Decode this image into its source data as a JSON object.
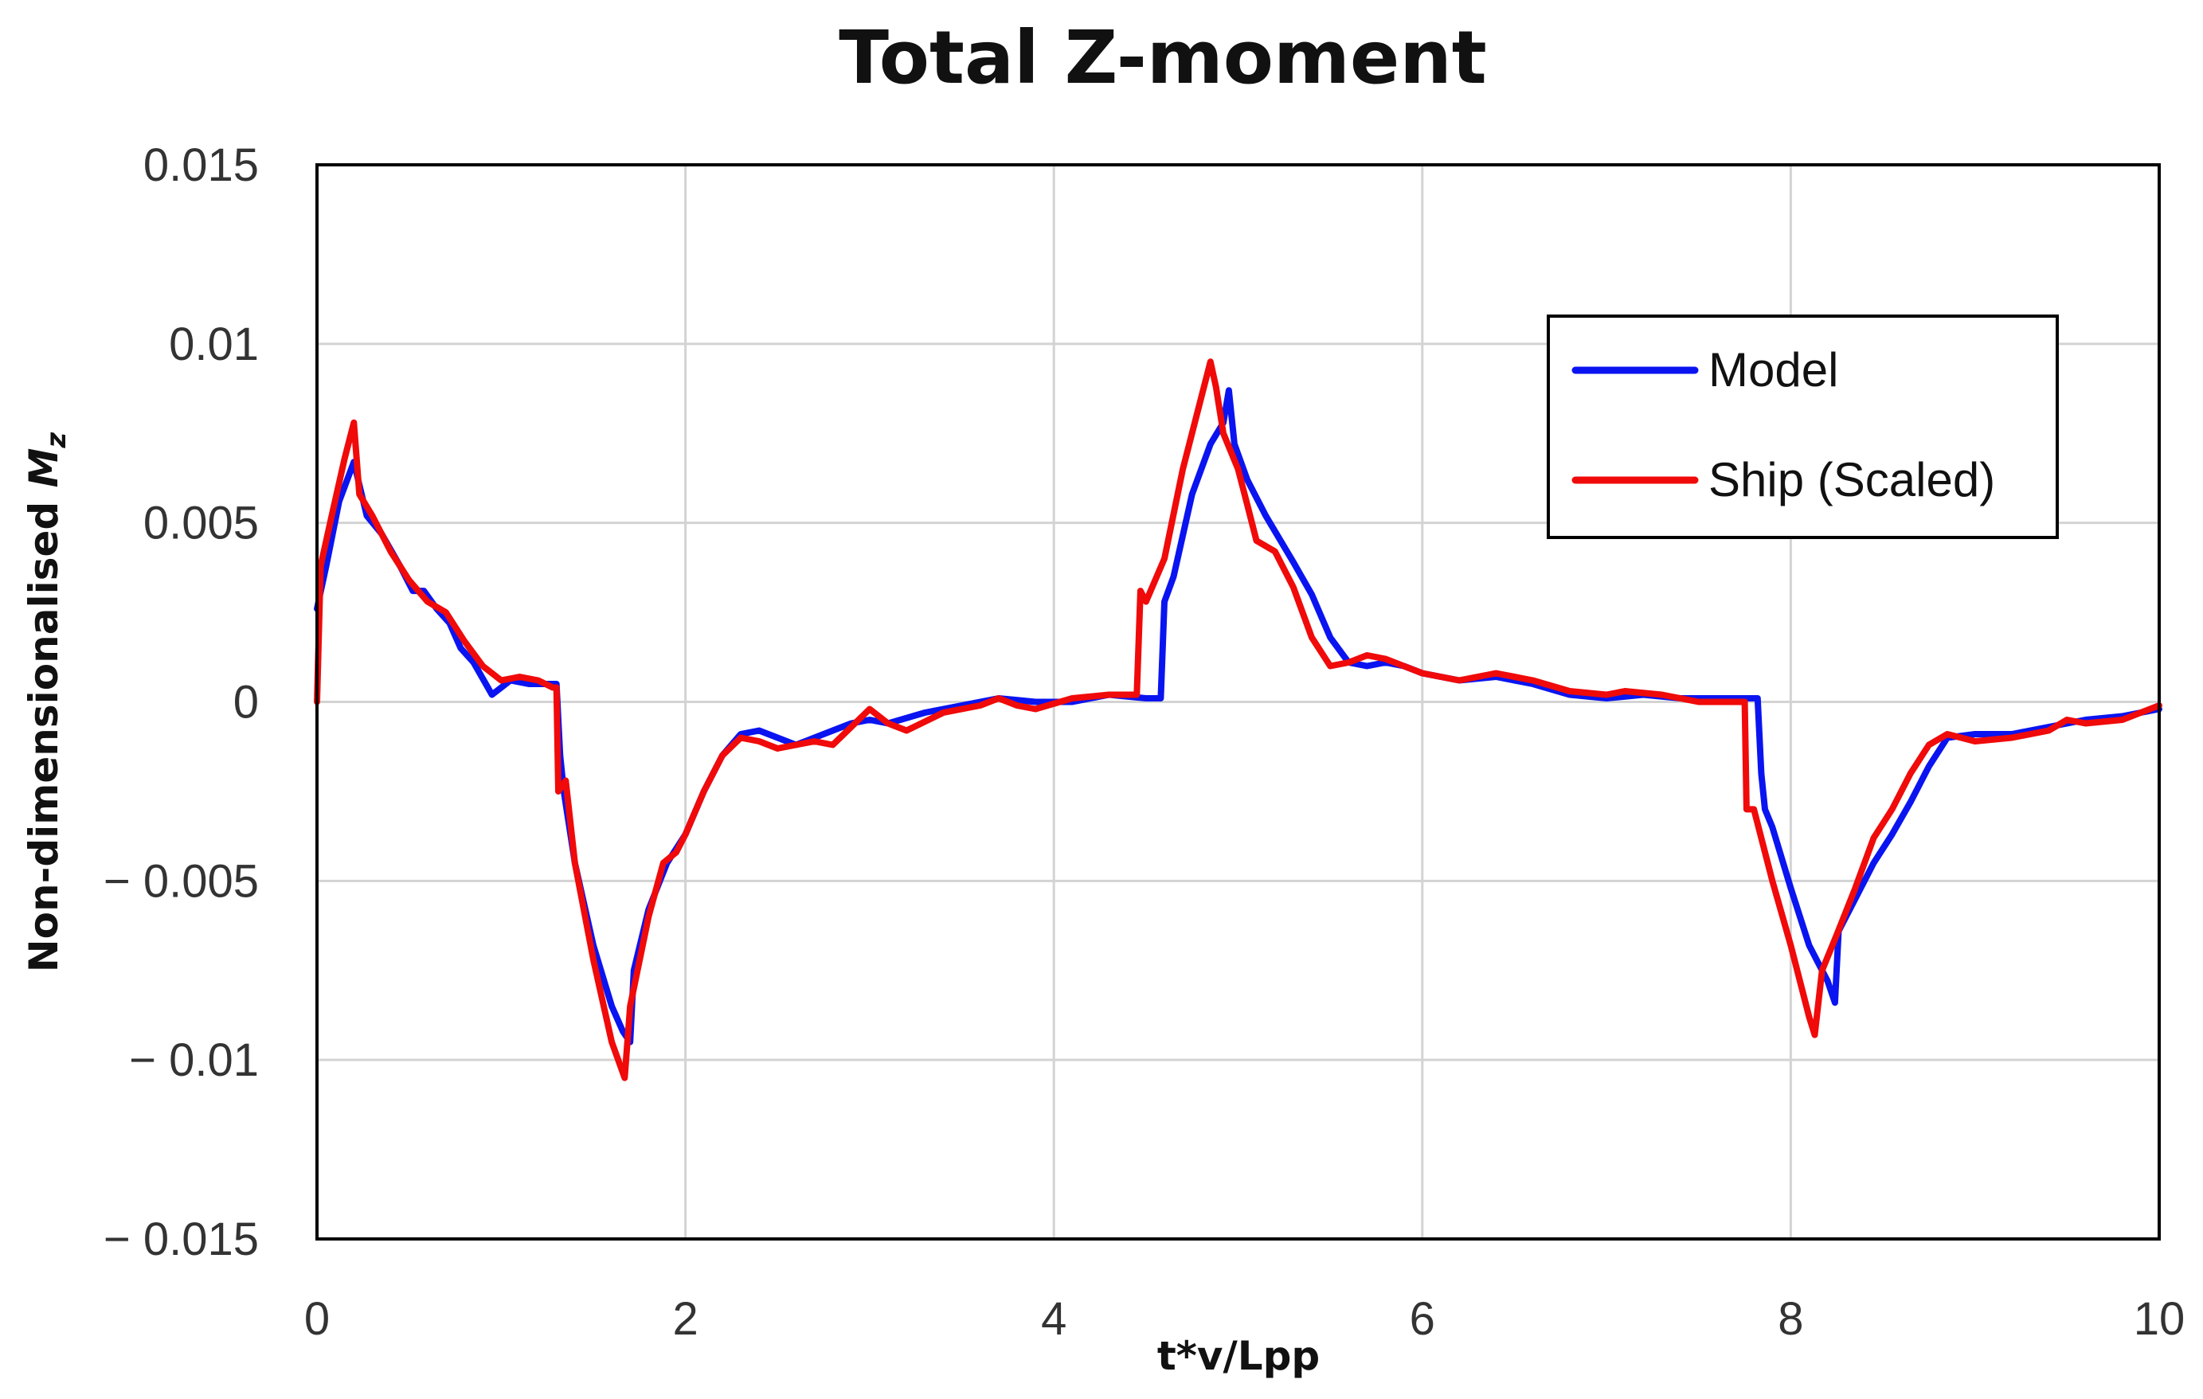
{
  "chart_data": {
    "type": "line",
    "title": "Total Z-moment",
    "xlabel": "t*v/Lpp",
    "ylabel_main": "Non-dimensionalised ",
    "ylabel_var": "M",
    "ylabel_sub": "z",
    "xlim": [
      0,
      10
    ],
    "ylim": [
      -0.015,
      0.015
    ],
    "xticks": [
      0,
      2,
      4,
      6,
      8,
      10
    ],
    "xtick_labels": [
      "0",
      "2",
      "4",
      "6",
      "8",
      "10"
    ],
    "yticks": [
      0.015,
      0.01,
      0.005,
      0,
      -0.005,
      -0.01,
      -0.015
    ],
    "ytick_labels": [
      "0.015",
      "0.01",
      "0.005",
      "0",
      "− 0.005",
      "− 0.01",
      "− 0.015"
    ],
    "grid": true,
    "legend_position": "top-right",
    "series": [
      {
        "name": "Model",
        "color": "#0a14f0",
        "points": [
          [
            0,
            0.0026
          ],
          [
            0.05,
            0.0038
          ],
          [
            0.12,
            0.0056
          ],
          [
            0.2,
            0.0067
          ],
          [
            0.27,
            0.0052
          ],
          [
            0.35,
            0.0047
          ],
          [
            0.45,
            0.0038
          ],
          [
            0.52,
            0.0031
          ],
          [
            0.58,
            0.0031
          ],
          [
            0.65,
            0.0026
          ],
          [
            0.72,
            0.0022
          ],
          [
            0.78,
            0.0015
          ],
          [
            0.85,
            0.0011
          ],
          [
            0.95,
            0.0002
          ],
          [
            1.05,
            0.0006
          ],
          [
            1.15,
            0.0005
          ],
          [
            1.28,
            0.0005
          ],
          [
            1.3,
            0.0005
          ],
          [
            1.32,
            -0.0015
          ],
          [
            1.34,
            -0.0025
          ],
          [
            1.4,
            -0.0045
          ],
          [
            1.5,
            -0.0068
          ],
          [
            1.6,
            -0.0085
          ],
          [
            1.66,
            -0.0092
          ],
          [
            1.7,
            -0.0095
          ],
          [
            1.72,
            -0.0075
          ],
          [
            1.8,
            -0.0058
          ],
          [
            1.9,
            -0.0045
          ],
          [
            2.0,
            -0.0037
          ],
          [
            2.1,
            -0.0025
          ],
          [
            2.2,
            -0.0015
          ],
          [
            2.3,
            -0.0009
          ],
          [
            2.4,
            -0.0008
          ],
          [
            2.5,
            -0.001
          ],
          [
            2.6,
            -0.0012
          ],
          [
            2.7,
            -0.001
          ],
          [
            2.8,
            -0.0008
          ],
          [
            2.9,
            -0.0006
          ],
          [
            3.0,
            -0.0005
          ],
          [
            3.1,
            -0.0006
          ],
          [
            3.3,
            -0.0003
          ],
          [
            3.5,
            -0.0001
          ],
          [
            3.7,
            0.0001
          ],
          [
            3.9,
            0.0
          ],
          [
            4.1,
            0.0
          ],
          [
            4.3,
            0.0002
          ],
          [
            4.5,
            0.0001
          ],
          [
            4.58,
            0.0001
          ],
          [
            4.6,
            0.0028
          ],
          [
            4.65,
            0.0035
          ],
          [
            4.75,
            0.0058
          ],
          [
            4.85,
            0.0072
          ],
          [
            4.92,
            0.0078
          ],
          [
            4.95,
            0.0087
          ],
          [
            4.98,
            0.0072
          ],
          [
            5.05,
            0.0062
          ],
          [
            5.15,
            0.0052
          ],
          [
            5.3,
            0.0039
          ],
          [
            5.4,
            0.003
          ],
          [
            5.5,
            0.0018
          ],
          [
            5.6,
            0.0011
          ],
          [
            5.7,
            0.001
          ],
          [
            5.8,
            0.0011
          ],
          [
            5.9,
            0.001
          ],
          [
            6.0,
            0.0008
          ],
          [
            6.2,
            0.0006
          ],
          [
            6.4,
            0.0007
          ],
          [
            6.6,
            0.0005
          ],
          [
            6.8,
            0.0002
          ],
          [
            7.0,
            0.0001
          ],
          [
            7.2,
            0.0002
          ],
          [
            7.4,
            0.0001
          ],
          [
            7.6,
            0.0001
          ],
          [
            7.8,
            0.0001
          ],
          [
            7.82,
            0.0001
          ],
          [
            7.84,
            -0.002
          ],
          [
            7.86,
            -0.003
          ],
          [
            7.9,
            -0.0035
          ],
          [
            8.0,
            -0.0052
          ],
          [
            8.1,
            -0.0068
          ],
          [
            8.2,
            -0.0078
          ],
          [
            8.24,
            -0.0084
          ],
          [
            8.26,
            -0.0064
          ],
          [
            8.35,
            -0.0055
          ],
          [
            8.45,
            -0.0045
          ],
          [
            8.55,
            -0.0037
          ],
          [
            8.65,
            -0.0028
          ],
          [
            8.75,
            -0.0018
          ],
          [
            8.85,
            -0.001
          ],
          [
            9.0,
            -0.0009
          ],
          [
            9.2,
            -0.0009
          ],
          [
            9.4,
            -0.0007
          ],
          [
            9.6,
            -0.0005
          ],
          [
            9.8,
            -0.0004
          ],
          [
            10.0,
            -0.0002
          ]
        ]
      },
      {
        "name": "Ship (Scaled)",
        "color": "#f00a0a",
        "points": [
          [
            0,
            0.0
          ],
          [
            0.02,
            0.0038
          ],
          [
            0.08,
            0.0052
          ],
          [
            0.15,
            0.0068
          ],
          [
            0.2,
            0.0078
          ],
          [
            0.23,
            0.0058
          ],
          [
            0.3,
            0.0052
          ],
          [
            0.4,
            0.0042
          ],
          [
            0.5,
            0.0034
          ],
          [
            0.6,
            0.0028
          ],
          [
            0.7,
            0.0025
          ],
          [
            0.8,
            0.0017
          ],
          [
            0.9,
            0.001
          ],
          [
            1.0,
            0.0006
          ],
          [
            1.1,
            0.0007
          ],
          [
            1.2,
            0.0006
          ],
          [
            1.28,
            0.0004
          ],
          [
            1.3,
            0.0004
          ],
          [
            1.31,
            -0.0025
          ],
          [
            1.35,
            -0.0022
          ],
          [
            1.4,
            -0.0045
          ],
          [
            1.5,
            -0.0072
          ],
          [
            1.6,
            -0.0095
          ],
          [
            1.67,
            -0.0105
          ],
          [
            1.7,
            -0.0085
          ],
          [
            1.8,
            -0.006
          ],
          [
            1.88,
            -0.0045
          ],
          [
            1.95,
            -0.0042
          ],
          [
            2.0,
            -0.0037
          ],
          [
            2.1,
            -0.0025
          ],
          [
            2.2,
            -0.0015
          ],
          [
            2.3,
            -0.001
          ],
          [
            2.4,
            -0.0011
          ],
          [
            2.5,
            -0.0013
          ],
          [
            2.6,
            -0.0012
          ],
          [
            2.7,
            -0.0011
          ],
          [
            2.8,
            -0.0012
          ],
          [
            2.9,
            -0.0007
          ],
          [
            3.0,
            -0.0002
          ],
          [
            3.1,
            -0.0006
          ],
          [
            3.2,
            -0.0008
          ],
          [
            3.4,
            -0.0003
          ],
          [
            3.6,
            -0.0001
          ],
          [
            3.7,
            0.0001
          ],
          [
            3.8,
            -0.0001
          ],
          [
            3.9,
            -0.0002
          ],
          [
            4.1,
            0.0001
          ],
          [
            4.3,
            0.0002
          ],
          [
            4.45,
            0.0002
          ],
          [
            4.47,
            0.0031
          ],
          [
            4.5,
            0.0028
          ],
          [
            4.6,
            0.004
          ],
          [
            4.7,
            0.0065
          ],
          [
            4.8,
            0.0085
          ],
          [
            4.85,
            0.0095
          ],
          [
            4.88,
            0.0088
          ],
          [
            4.92,
            0.0075
          ],
          [
            5.0,
            0.0065
          ],
          [
            5.05,
            0.0055
          ],
          [
            5.1,
            0.0045
          ],
          [
            5.2,
            0.0042
          ],
          [
            5.3,
            0.0032
          ],
          [
            5.4,
            0.0018
          ],
          [
            5.5,
            0.001
          ],
          [
            5.6,
            0.0011
          ],
          [
            5.7,
            0.0013
          ],
          [
            5.8,
            0.0012
          ],
          [
            6.0,
            0.0008
          ],
          [
            6.2,
            0.0006
          ],
          [
            6.4,
            0.0008
          ],
          [
            6.6,
            0.0006
          ],
          [
            6.8,
            0.0003
          ],
          [
            7.0,
            0.0002
          ],
          [
            7.1,
            0.0003
          ],
          [
            7.3,
            0.0002
          ],
          [
            7.5,
            0.0
          ],
          [
            7.7,
            0.0
          ],
          [
            7.75,
            0.0
          ],
          [
            7.76,
            -0.003
          ],
          [
            7.8,
            -0.003
          ],
          [
            7.9,
            -0.005
          ],
          [
            8.0,
            -0.0068
          ],
          [
            8.1,
            -0.0088
          ],
          [
            8.13,
            -0.0093
          ],
          [
            8.17,
            -0.0075
          ],
          [
            8.25,
            -0.0065
          ],
          [
            8.35,
            -0.0052
          ],
          [
            8.45,
            -0.0038
          ],
          [
            8.55,
            -0.003
          ],
          [
            8.65,
            -0.002
          ],
          [
            8.75,
            -0.0012
          ],
          [
            8.85,
            -0.0009
          ],
          [
            9.0,
            -0.0011
          ],
          [
            9.2,
            -0.001
          ],
          [
            9.4,
            -0.0008
          ],
          [
            9.5,
            -0.0005
          ],
          [
            9.6,
            -0.0006
          ],
          [
            9.8,
            -0.0005
          ],
          [
            10.0,
            -0.0001
          ]
        ]
      }
    ]
  }
}
